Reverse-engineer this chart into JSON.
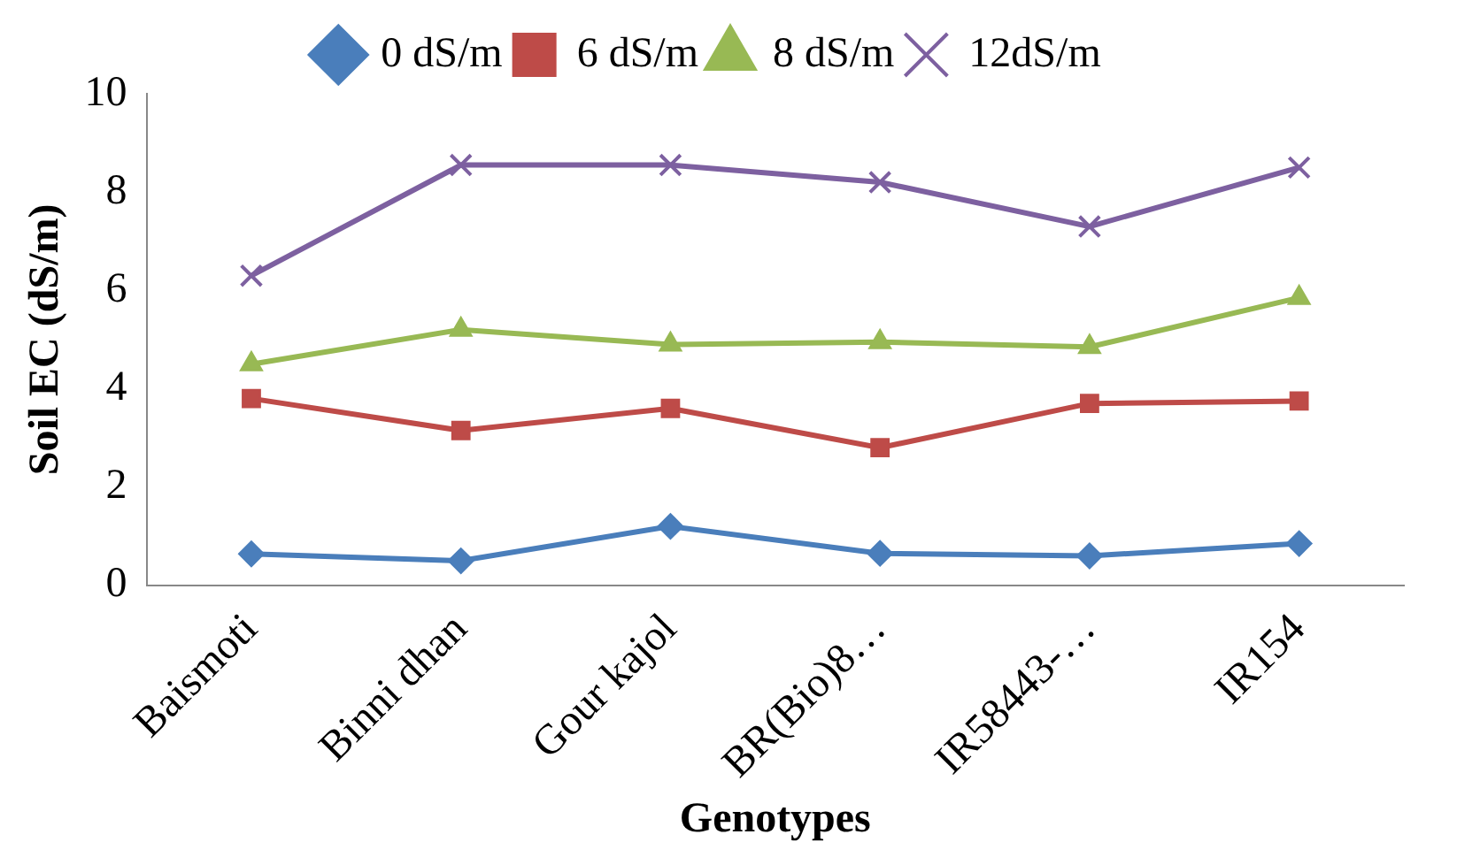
{
  "chart_data": {
    "type": "line",
    "xlabel": "Genotypes",
    "ylabel": "Soil EC (dS/m)",
    "categories": [
      "Baismoti",
      "Binni dhan",
      "Gour kajol",
      "BR(Bio)8…",
      "IR58443-…",
      "IR154"
    ],
    "series": [
      {
        "name": "0 dS/m",
        "color": "#4a7ebb",
        "marker": "diamond",
        "values": [
          0.64,
          0.5,
          1.2,
          0.65,
          0.6,
          0.85
        ]
      },
      {
        "name": "6 dS/m",
        "color": "#be4b48",
        "marker": "square",
        "values": [
          3.8,
          3.15,
          3.6,
          2.8,
          3.7,
          3.75
        ]
      },
      {
        "name": "8 dS/m",
        "color": "#98b954",
        "marker": "triangle",
        "values": [
          4.5,
          5.2,
          4.9,
          4.95,
          4.85,
          5.85
        ]
      },
      {
        "name": "12dS/m",
        "color": "#7d60a0",
        "marker": "cross",
        "values": [
          6.3,
          8.55,
          8.55,
          8.2,
          7.3,
          8.5
        ]
      }
    ],
    "ylim": [
      0,
      10
    ],
    "yticks": [
      0,
      2,
      4,
      6,
      8,
      10
    ],
    "grid": false,
    "legend": "top"
  }
}
